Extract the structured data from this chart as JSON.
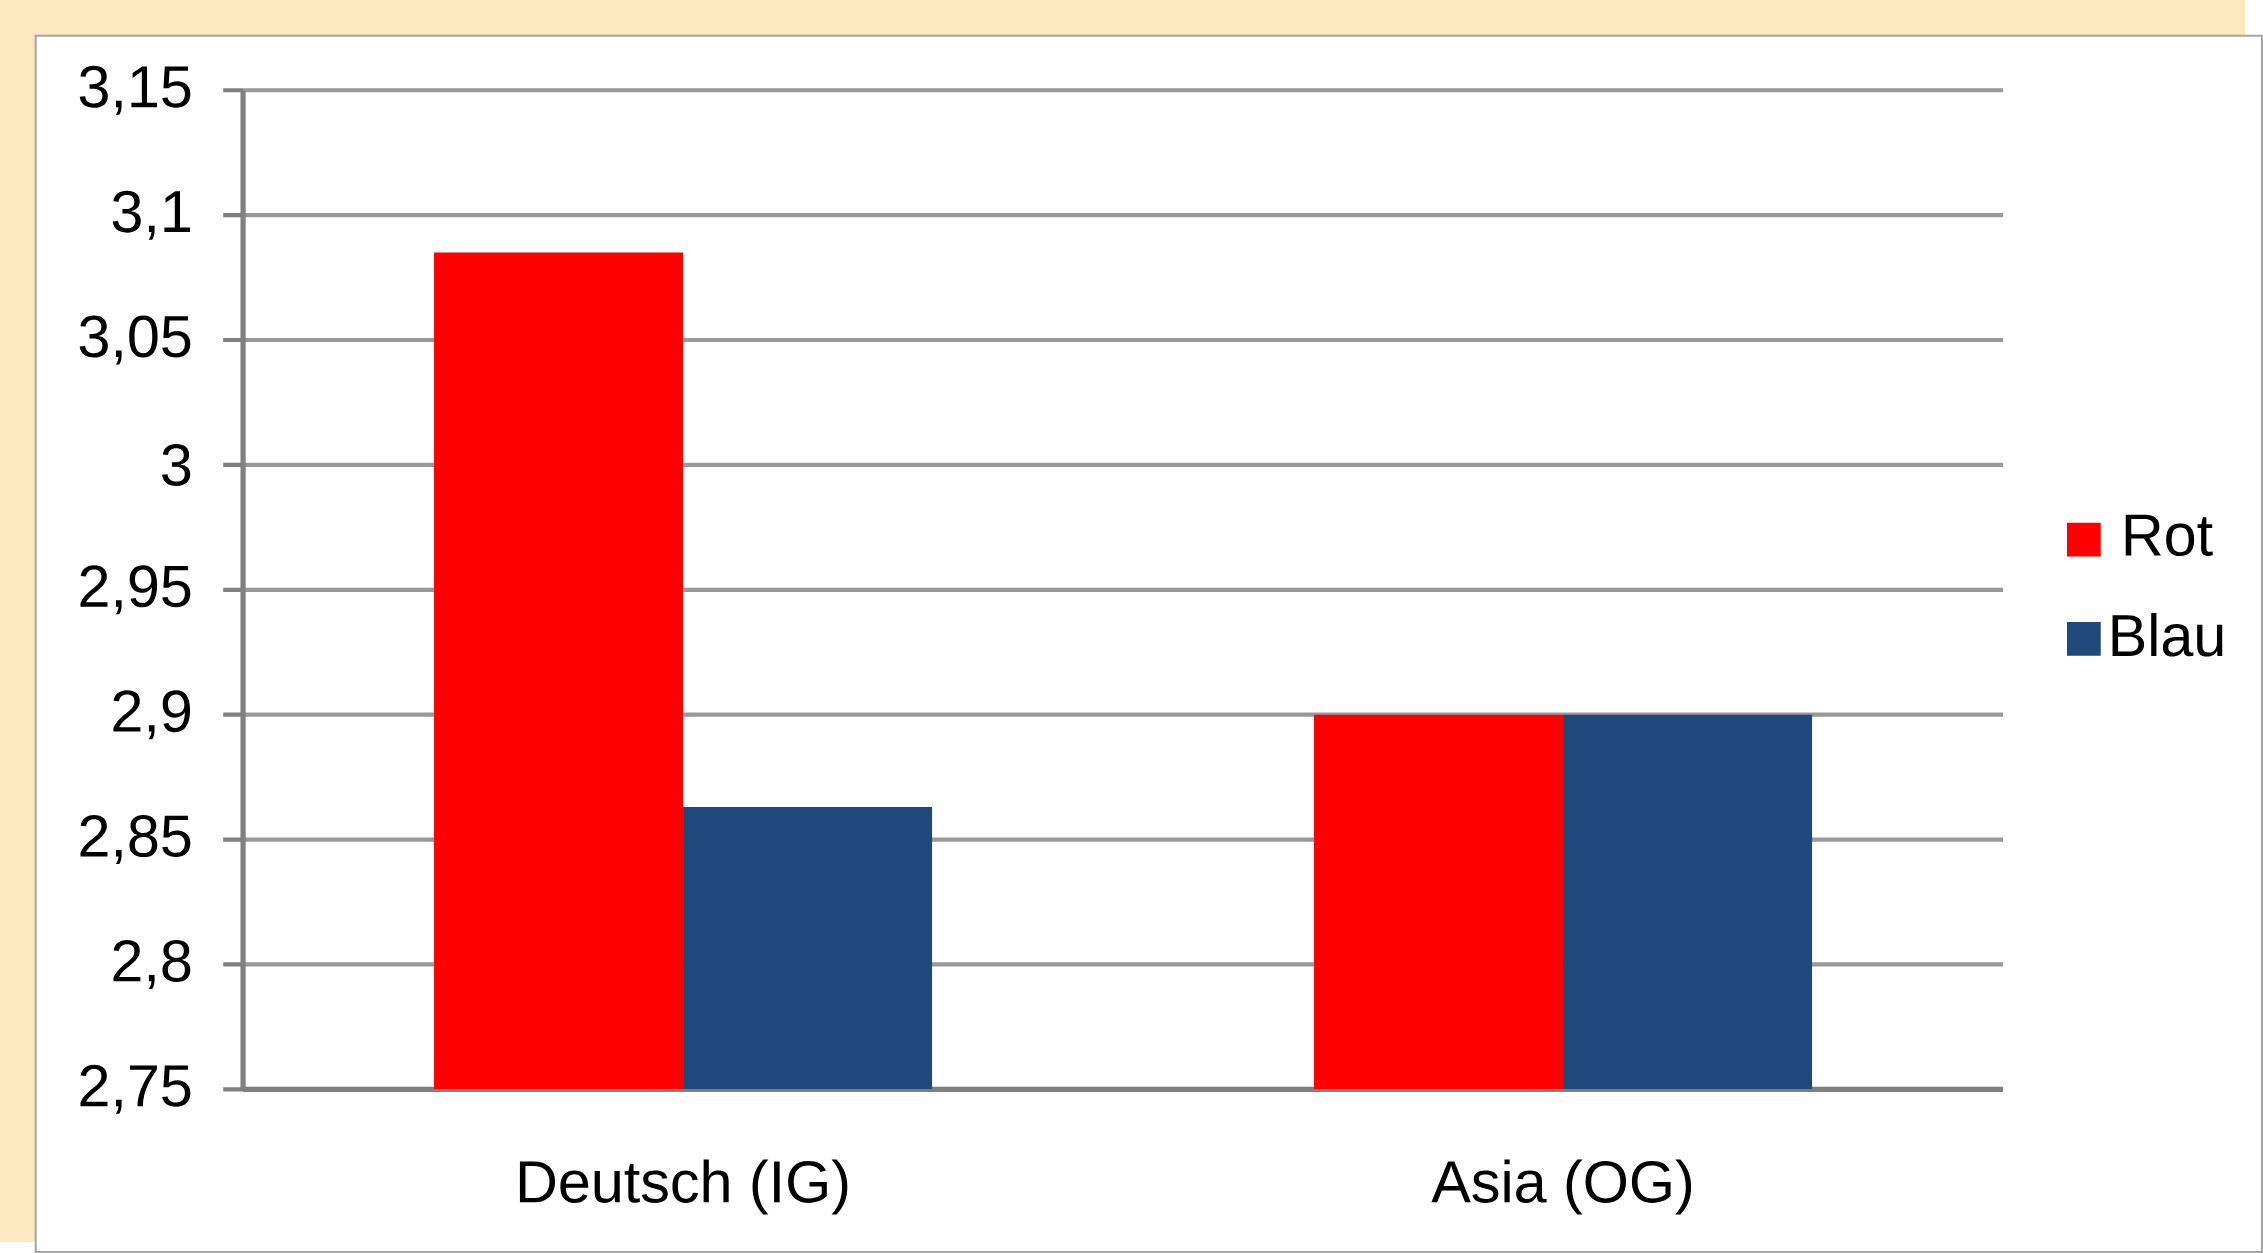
{
  "chart_data": {
    "type": "bar",
    "categories": [
      "Deutsch (IG)",
      "Asia (OG)"
    ],
    "series": [
      {
        "name": "Rot",
        "color": "#ff0000",
        "values": [
          3.085,
          2.9
        ]
      },
      {
        "name": "Blau",
        "color": "#1f497d",
        "values": [
          2.863,
          2.9
        ]
      }
    ],
    "ylim": [
      2.75,
      3.15
    ],
    "yticks": [
      {
        "value": 2.75,
        "label": "2,75"
      },
      {
        "value": 2.8,
        "label": "2,8"
      },
      {
        "value": 2.85,
        "label": "2,85"
      },
      {
        "value": 2.9,
        "label": "2,9"
      },
      {
        "value": 2.95,
        "label": "2,95"
      },
      {
        "value": 3,
        "label": "3"
      },
      {
        "value": 3.05,
        "label": "3,05"
      },
      {
        "value": 3.1,
        "label": "3,1"
      },
      {
        "value": 3.15,
        "label": "3,15"
      }
    ],
    "grid": "y",
    "legend": "right"
  }
}
